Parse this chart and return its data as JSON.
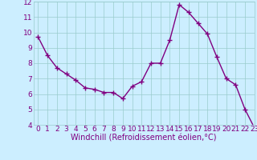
{
  "x": [
    0,
    1,
    2,
    3,
    4,
    5,
    6,
    7,
    8,
    9,
    10,
    11,
    12,
    13,
    14,
    15,
    16,
    17,
    18,
    19,
    20,
    21,
    22,
    23
  ],
  "y": [
    9.7,
    8.5,
    7.7,
    7.3,
    6.9,
    6.4,
    6.3,
    6.1,
    6.1,
    5.7,
    6.5,
    6.8,
    8.0,
    8.0,
    9.5,
    11.8,
    11.3,
    10.6,
    9.9,
    8.4,
    7.0,
    6.6,
    5.0,
    3.8
  ],
  "line_color": "#800080",
  "marker": "+",
  "marker_size": 4,
  "bg_color": "#cceeff",
  "grid_color": "#99cccc",
  "xlabel": "Windchill (Refroidissement éolien,°C)",
  "ylim": [
    4,
    12
  ],
  "xlim": [
    -0.5,
    23
  ],
  "yticks": [
    4,
    5,
    6,
    7,
    8,
    9,
    10,
    11,
    12
  ],
  "xticks": [
    0,
    1,
    2,
    3,
    4,
    5,
    6,
    7,
    8,
    9,
    10,
    11,
    12,
    13,
    14,
    15,
    16,
    17,
    18,
    19,
    20,
    21,
    22,
    23
  ],
  "label_color": "#800080",
  "tick_color": "#800080",
  "xlabel_fontsize": 7,
  "tick_fontsize": 6.5,
  "linewidth": 1.0,
  "markeredgewidth": 1.0
}
